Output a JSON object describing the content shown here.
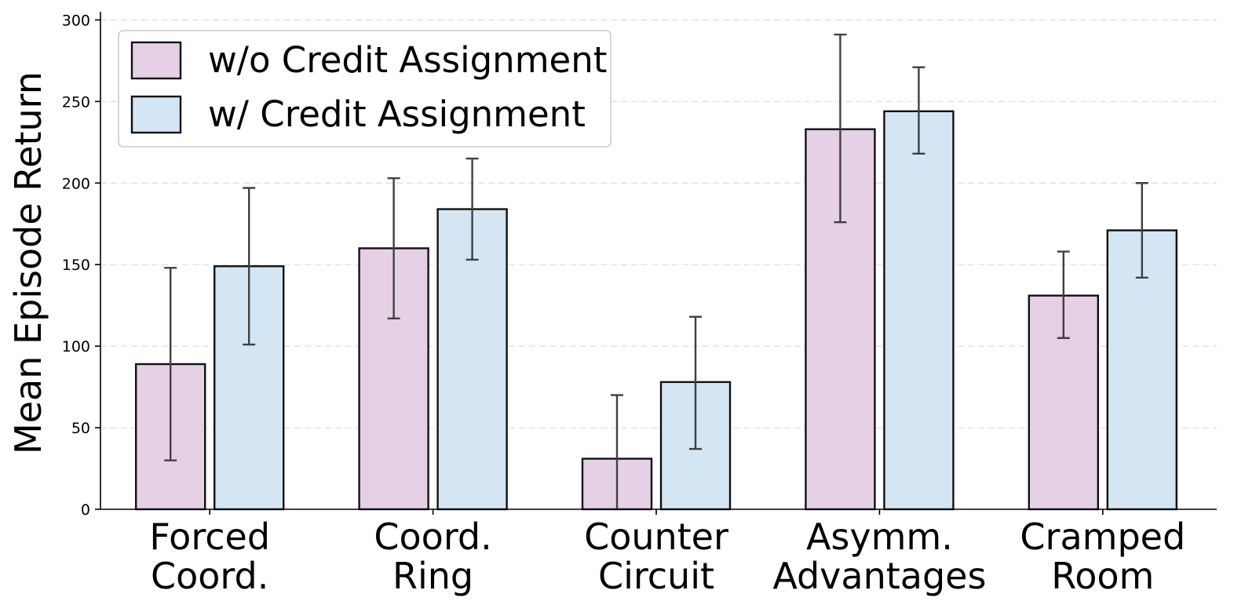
{
  "chart_data": {
    "type": "bar",
    "title": "",
    "xlabel": "",
    "ylabel": "Mean Episode Return",
    "ylim": [
      0,
      305
    ],
    "yticks": [
      0,
      50,
      100,
      150,
      200,
      250,
      300
    ],
    "grid": "horizontal-dashed",
    "legend_position": "top-left",
    "categories": [
      [
        "Forced",
        "Coord."
      ],
      [
        "Coord.",
        "Ring"
      ],
      [
        "Counter",
        "Circuit"
      ],
      [
        "Asymm.",
        "Advantages"
      ],
      [
        "Cramped",
        "Room"
      ]
    ],
    "series": [
      {
        "name": "w/o Credit Assignment",
        "color": "#e6d0e6",
        "values": [
          89,
          160,
          31,
          233,
          131
        ],
        "error_low": [
          30,
          117,
          0,
          176,
          105
        ],
        "error_high": [
          148,
          203,
          70,
          291,
          158
        ]
      },
      {
        "name": "w/ Credit Assignment",
        "color": "#d4e6f4",
        "values": [
          149,
          184,
          78,
          244,
          171
        ],
        "error_low": [
          101,
          153,
          37,
          218,
          142
        ],
        "error_high": [
          197,
          215,
          118,
          271,
          200
        ]
      }
    ]
  }
}
